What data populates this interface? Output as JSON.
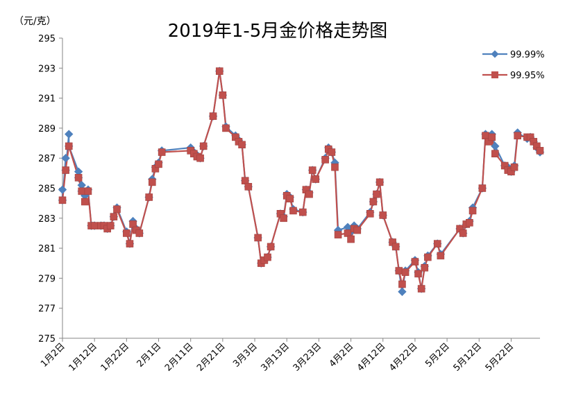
{
  "chart_data": {
    "type": "line",
    "title": "2019年1-5月金价格走势图",
    "unit_label": "（元/克）",
    "xlabel": "",
    "ylabel": "",
    "ylim": [
      275,
      295
    ],
    "yticks": [
      275,
      277,
      279,
      281,
      283,
      285,
      287,
      289,
      291,
      293,
      295
    ],
    "xlim": [
      "1月2日",
      "5月31日"
    ],
    "xtick_labels": [
      {
        "label": "1月2日",
        "date": "01-02"
      },
      {
        "label": "1月12日",
        "date": "01-12"
      },
      {
        "label": "1月22日",
        "date": "01-22"
      },
      {
        "label": "2月1日",
        "date": "02-01"
      },
      {
        "label": "2月11日",
        "date": "02-11"
      },
      {
        "label": "2月21日",
        "date": "02-21"
      },
      {
        "label": "3月3日",
        "date": "03-03"
      },
      {
        "label": "3月13日",
        "date": "03-13"
      },
      {
        "label": "3月23日",
        "date": "03-23"
      },
      {
        "label": "4月2日",
        "date": "04-02"
      },
      {
        "label": "4月12日",
        "date": "04-12"
      },
      {
        "label": "4月22日",
        "date": "04-22"
      },
      {
        "label": "5月2日",
        "date": "05-02"
      },
      {
        "label": "5月12日",
        "date": "05-12"
      },
      {
        "label": "5月22日",
        "date": "05-22"
      }
    ],
    "grid": false,
    "legend_position": "top-right",
    "series": [
      {
        "name": "99.99%",
        "color": "#4f81bd",
        "marker": "diamond",
        "points": [
          [
            "01-02",
            284.9
          ],
          [
            "01-02",
            284.2
          ],
          [
            "01-03",
            287.0
          ],
          [
            "01-03",
            286.2
          ],
          [
            "01-04",
            288.6
          ],
          [
            "01-04",
            287.8
          ],
          [
            "01-07",
            286.1
          ],
          [
            "01-07",
            285.7
          ],
          [
            "01-08",
            285.2
          ],
          [
            "01-08",
            284.8
          ],
          [
            "01-09",
            284.5
          ],
          [
            "01-10",
            284.9
          ],
          [
            "01-11",
            282.5
          ],
          [
            "01-12",
            282.5
          ],
          [
            "01-14",
            282.5
          ],
          [
            "01-15",
            282.5
          ],
          [
            "01-16",
            282.3
          ],
          [
            "01-17",
            282.5
          ],
          [
            "01-18",
            283.1
          ],
          [
            "01-19",
            283.7
          ],
          [
            "01-22",
            282.1
          ],
          [
            "01-23",
            281.3
          ],
          [
            "01-24",
            282.8
          ],
          [
            "01-25",
            282.3
          ],
          [
            "01-26",
            282.0
          ],
          [
            "01-29",
            284.4
          ],
          [
            "01-30",
            285.6
          ],
          [
            "01-31",
            286.4
          ],
          [
            "02-01",
            286.7
          ],
          [
            "02-02",
            287.5
          ],
          [
            "02-11",
            287.7
          ],
          [
            "02-12",
            287.4
          ],
          [
            "02-13",
            287.2
          ],
          [
            "02-14",
            287.0
          ],
          [
            "02-15",
            287.8
          ],
          [
            "02-18",
            289.8
          ],
          [
            "02-20",
            292.8
          ],
          [
            "02-21",
            291.2
          ],
          [
            "02-22",
            289.1
          ],
          [
            "02-25",
            288.5
          ],
          [
            "02-26",
            288.2
          ],
          [
            "02-27",
            287.9
          ],
          [
            "02-28",
            285.5
          ],
          [
            "03-01",
            285.1
          ],
          [
            "03-04",
            281.7
          ],
          [
            "03-05",
            280.0
          ],
          [
            "03-06",
            280.2
          ],
          [
            "03-07",
            280.4
          ],
          [
            "03-08",
            281.1
          ],
          [
            "03-11",
            283.3
          ],
          [
            "03-12",
            283.1
          ],
          [
            "03-13",
            284.6
          ],
          [
            "03-14",
            284.4
          ],
          [
            "03-15",
            283.6
          ],
          [
            "03-18",
            283.4
          ],
          [
            "03-19",
            284.9
          ],
          [
            "03-20",
            284.7
          ],
          [
            "03-21",
            286.2
          ],
          [
            "03-22",
            285.6
          ],
          [
            "03-25",
            287.0
          ],
          [
            "03-26",
            287.7
          ],
          [
            "03-27",
            287.4
          ],
          [
            "03-28",
            286.7
          ],
          [
            "03-29",
            282.2
          ],
          [
            "04-01",
            282.4
          ],
          [
            "04-02",
            282.1
          ],
          [
            "04-03",
            282.5
          ],
          [
            "04-04",
            282.3
          ],
          [
            "04-08",
            283.4
          ],
          [
            "04-09",
            284.1
          ],
          [
            "04-10",
            284.6
          ],
          [
            "04-11",
            285.4
          ],
          [
            "04-12",
            283.2
          ],
          [
            "04-15",
            281.4
          ],
          [
            "04-16",
            281.1
          ],
          [
            "04-17",
            279.5
          ],
          [
            "04-18",
            278.1
          ],
          [
            "04-19",
            279.5
          ],
          [
            "04-22",
            280.2
          ],
          [
            "04-23",
            279.4
          ],
          [
            "04-24",
            278.3
          ],
          [
            "04-25",
            279.8
          ],
          [
            "04-26",
            280.5
          ],
          [
            "04-29",
            281.3
          ],
          [
            "04-30",
            280.6
          ],
          [
            "05-06",
            282.3
          ],
          [
            "05-07",
            282.0
          ],
          [
            "05-08",
            282.6
          ],
          [
            "05-09",
            282.8
          ],
          [
            "05-10",
            283.7
          ],
          [
            "05-13",
            285.0
          ],
          [
            "05-14",
            288.6
          ],
          [
            "05-15",
            288.3
          ],
          [
            "05-16",
            288.6
          ],
          [
            "05-17",
            287.8
          ],
          [
            "05-20",
            286.5
          ],
          [
            "05-21",
            286.4
          ],
          [
            "05-22",
            286.1
          ],
          [
            "05-23",
            286.5
          ],
          [
            "05-24",
            288.7
          ],
          [
            "05-27",
            288.3
          ],
          [
            "05-28",
            288.4
          ],
          [
            "05-29",
            288.1
          ],
          [
            "05-30",
            287.7
          ],
          [
            "05-31",
            287.4
          ]
        ]
      },
      {
        "name": "99.95%",
        "color": "#c0504d",
        "marker": "square",
        "points": [
          [
            "01-02",
            284.2
          ],
          [
            "01-03",
            286.2
          ],
          [
            "01-04",
            287.8
          ],
          [
            "01-07",
            285.7
          ],
          [
            "01-08",
            284.8
          ],
          [
            "01-09",
            284.1
          ],
          [
            "01-10",
            284.8
          ],
          [
            "01-11",
            282.5
          ],
          [
            "01-12",
            282.5
          ],
          [
            "01-14",
            282.5
          ],
          [
            "01-15",
            282.5
          ],
          [
            "01-16",
            282.3
          ],
          [
            "01-17",
            282.5
          ],
          [
            "01-18",
            283.1
          ],
          [
            "01-19",
            283.6
          ],
          [
            "01-22",
            282.0
          ],
          [
            "01-23",
            281.3
          ],
          [
            "01-24",
            282.6
          ],
          [
            "01-25",
            282.2
          ],
          [
            "01-26",
            282.0
          ],
          [
            "01-29",
            284.4
          ],
          [
            "01-30",
            285.4
          ],
          [
            "01-31",
            286.3
          ],
          [
            "02-01",
            286.6
          ],
          [
            "02-02",
            287.4
          ],
          [
            "02-11",
            287.5
          ],
          [
            "02-12",
            287.3
          ],
          [
            "02-13",
            287.1
          ],
          [
            "02-14",
            287.0
          ],
          [
            "02-15",
            287.8
          ],
          [
            "02-18",
            289.8
          ],
          [
            "02-20",
            292.8
          ],
          [
            "02-21",
            291.2
          ],
          [
            "02-22",
            289.0
          ],
          [
            "02-25",
            288.4
          ],
          [
            "02-26",
            288.1
          ],
          [
            "02-27",
            287.9
          ],
          [
            "02-28",
            285.5
          ],
          [
            "03-01",
            285.1
          ],
          [
            "03-04",
            281.7
          ],
          [
            "03-05",
            280.0
          ],
          [
            "03-06",
            280.2
          ],
          [
            "03-07",
            280.4
          ],
          [
            "03-08",
            281.1
          ],
          [
            "03-11",
            283.3
          ],
          [
            "03-12",
            283.0
          ],
          [
            "03-13",
            284.5
          ],
          [
            "03-14",
            284.3
          ],
          [
            "03-15",
            283.5
          ],
          [
            "03-18",
            283.4
          ],
          [
            "03-19",
            284.9
          ],
          [
            "03-20",
            284.6
          ],
          [
            "03-21",
            286.2
          ],
          [
            "03-22",
            285.6
          ],
          [
            "03-25",
            286.9
          ],
          [
            "03-26",
            287.6
          ],
          [
            "03-27",
            287.4
          ],
          [
            "03-28",
            286.4
          ],
          [
            "03-29",
            281.9
          ],
          [
            "04-01",
            282.0
          ],
          [
            "04-02",
            281.6
          ],
          [
            "04-03",
            282.3
          ],
          [
            "04-04",
            282.2
          ],
          [
            "04-08",
            283.3
          ],
          [
            "04-09",
            284.1
          ],
          [
            "04-10",
            284.6
          ],
          [
            "04-11",
            285.4
          ],
          [
            "04-12",
            283.2
          ],
          [
            "04-15",
            281.4
          ],
          [
            "04-16",
            281.1
          ],
          [
            "04-17",
            279.5
          ],
          [
            "04-18",
            278.6
          ],
          [
            "04-19",
            279.4
          ],
          [
            "04-22",
            280.1
          ],
          [
            "04-23",
            279.3
          ],
          [
            "04-24",
            278.3
          ],
          [
            "04-25",
            279.7
          ],
          [
            "04-26",
            280.4
          ],
          [
            "04-29",
            281.3
          ],
          [
            "04-30",
            280.5
          ],
          [
            "05-06",
            282.3
          ],
          [
            "05-07",
            282.0
          ],
          [
            "05-08",
            282.6
          ],
          [
            "05-09",
            282.7
          ],
          [
            "05-10",
            283.5
          ],
          [
            "05-13",
            285.0
          ],
          [
            "05-14",
            288.5
          ],
          [
            "05-15",
            288.1
          ],
          [
            "05-16",
            288.4
          ],
          [
            "05-17",
            287.3
          ],
          [
            "05-20",
            286.5
          ],
          [
            "05-21",
            286.2
          ],
          [
            "05-22",
            286.1
          ],
          [
            "05-23",
            286.4
          ],
          [
            "05-24",
            288.5
          ],
          [
            "05-27",
            288.4
          ],
          [
            "05-28",
            288.4
          ],
          [
            "05-29",
            288.1
          ],
          [
            "05-30",
            287.8
          ],
          [
            "05-31",
            287.5
          ]
        ]
      }
    ]
  }
}
